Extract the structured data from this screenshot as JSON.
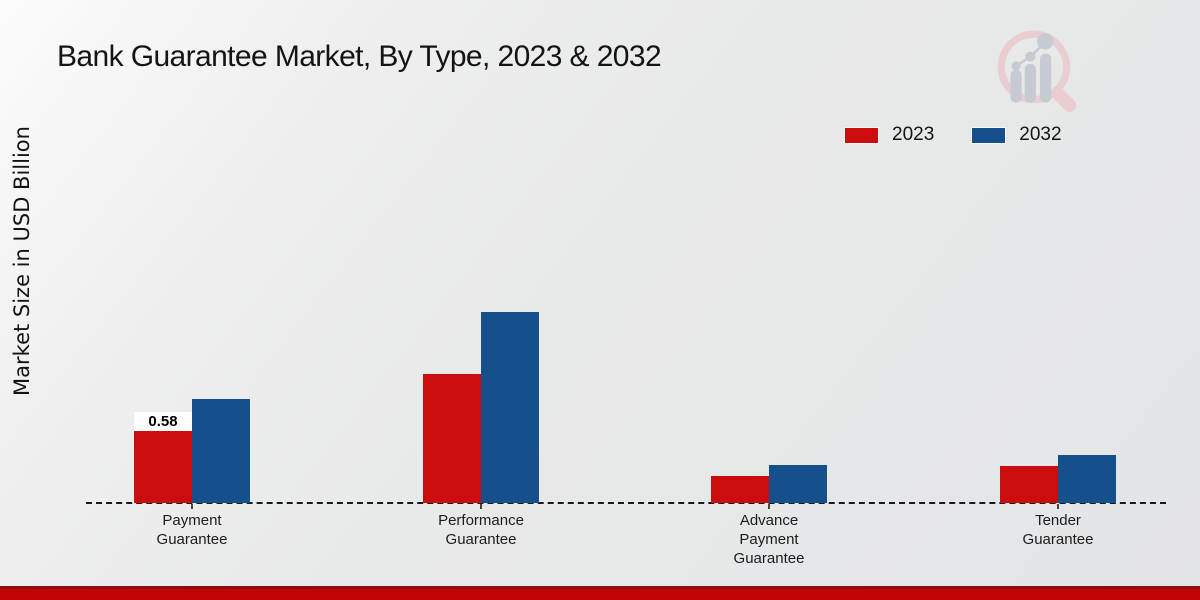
{
  "header": {
    "title": "Bank Guarantee Market, By Type, 2023 & 2032"
  },
  "y_axis": {
    "label": "Market Size in USD Billion"
  },
  "legend": {
    "items": [
      {
        "label": "2023",
        "color": "#cc0d0e"
      },
      {
        "label": "2032",
        "color": "#15508c"
      }
    ]
  },
  "colors": {
    "series_2023": "#cc0d0e",
    "series_2032": "#15508c",
    "axis_line": "#1a1a1a",
    "text": "#141414",
    "value_label_bg": "#ffffff",
    "footer_bar": "#c20404",
    "footer_bar_top": "#8b0f0f",
    "watermark_ring": "#e9cdd0",
    "watermark_bars": "#c6cbd3"
  },
  "watermark": {
    "icon": "magnifier-bar-chart-logo"
  },
  "chart_data": {
    "type": "bar",
    "title": "Bank Guarantee Market, By Type, 2023 & 2032",
    "xlabel": "",
    "ylabel": "Market Size in USD Billion",
    "categories": [
      "Payment Guarantee",
      "Performance Guarantee",
      "Advance Payment Guarantee",
      "Tender Guarantee"
    ],
    "series": [
      {
        "name": "2023",
        "color": "#cc0d0e",
        "values": [
          0.58,
          1.04,
          0.22,
          0.3
        ]
      },
      {
        "name": "2032",
        "color": "#15508c",
        "values": [
          0.84,
          1.54,
          0.31,
          0.39
        ]
      }
    ],
    "data_labels": [
      {
        "series": "2023",
        "category": "Payment Guarantee",
        "text": "0.58"
      }
    ],
    "ylim": [
      0,
      1.9
    ],
    "y_axis_visible": false,
    "grid": false,
    "baseline_style": "dashed",
    "legend_position": "top-right"
  }
}
